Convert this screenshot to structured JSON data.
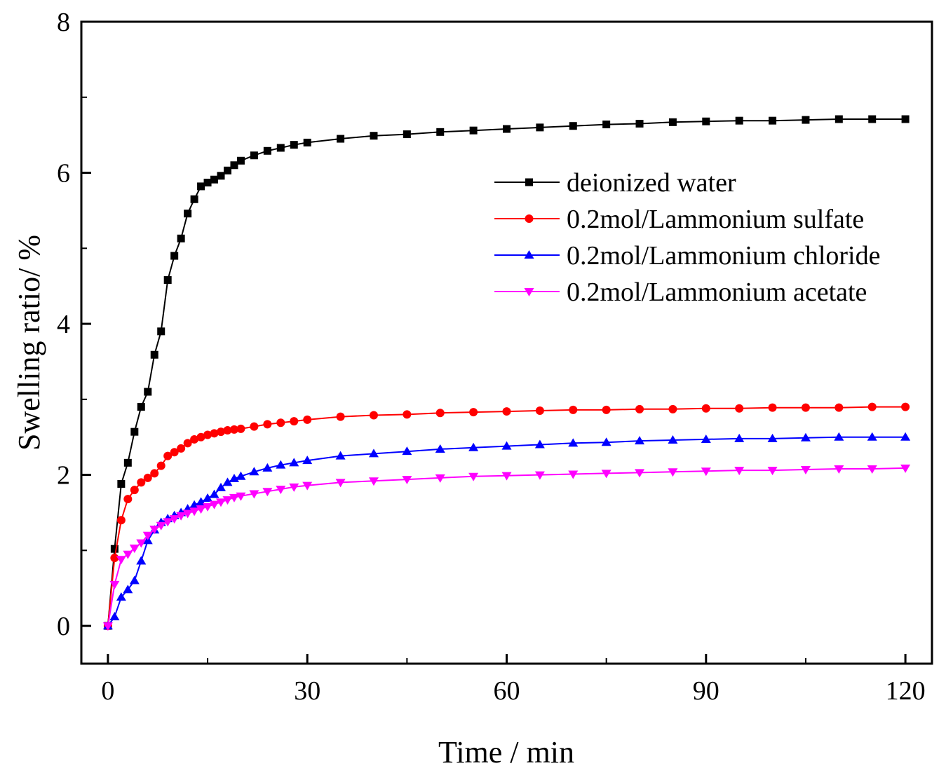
{
  "chart_data": {
    "type": "line",
    "title": "",
    "xlabel": "Time / min",
    "ylabel": "Swelling ratio/ %",
    "xlim": [
      -4,
      124
    ],
    "ylim": [
      -0.5,
      8
    ],
    "xticks": [
      0,
      30,
      60,
      90,
      120
    ],
    "yticks": [
      0,
      2,
      4,
      6,
      8
    ],
    "xtick_labels": [
      "0",
      "30",
      "60",
      "90",
      "120"
    ],
    "ytick_labels": [
      "0",
      "2",
      "4",
      "6",
      "8"
    ],
    "legend_position": "right",
    "series": [
      {
        "name": "deionized water",
        "color": "#000000",
        "marker": "square",
        "x": [
          0,
          1,
          2,
          3,
          4,
          5,
          6,
          7,
          8,
          9,
          10,
          11,
          12,
          13,
          14,
          15,
          16,
          17,
          18,
          19,
          20,
          22,
          24,
          26,
          28,
          30,
          35,
          40,
          45,
          50,
          55,
          60,
          65,
          70,
          75,
          80,
          85,
          90,
          95,
          100,
          105,
          110,
          115,
          120
        ],
        "y": [
          0,
          1.02,
          1.88,
          2.16,
          2.57,
          2.9,
          3.1,
          3.59,
          3.9,
          4.58,
          4.9,
          5.13,
          5.46,
          5.65,
          5.82,
          5.87,
          5.91,
          5.96,
          6.03,
          6.1,
          6.16,
          6.23,
          6.29,
          6.33,
          6.37,
          6.4,
          6.45,
          6.49,
          6.51,
          6.54,
          6.56,
          6.58,
          6.6,
          6.62,
          6.64,
          6.65,
          6.67,
          6.68,
          6.69,
          6.69,
          6.7,
          6.71,
          6.71,
          6.71
        ]
      },
      {
        "name": "0.2mol/Lammonium sulfate",
        "color": "#ff0000",
        "marker": "circle",
        "x": [
          0,
          1,
          2,
          3,
          4,
          5,
          6,
          7,
          8,
          9,
          10,
          11,
          12,
          13,
          14,
          15,
          16,
          17,
          18,
          19,
          20,
          22,
          24,
          26,
          28,
          30,
          35,
          40,
          45,
          50,
          55,
          60,
          65,
          70,
          75,
          80,
          85,
          90,
          95,
          100,
          105,
          110,
          115,
          120
        ],
        "y": [
          0,
          0.9,
          1.4,
          1.68,
          1.8,
          1.9,
          1.96,
          2.02,
          2.12,
          2.25,
          2.3,
          2.35,
          2.42,
          2.47,
          2.5,
          2.53,
          2.55,
          2.57,
          2.59,
          2.6,
          2.61,
          2.64,
          2.67,
          2.69,
          2.71,
          2.73,
          2.77,
          2.79,
          2.8,
          2.82,
          2.83,
          2.84,
          2.85,
          2.86,
          2.86,
          2.87,
          2.87,
          2.88,
          2.88,
          2.89,
          2.89,
          2.89,
          2.9,
          2.9
        ]
      },
      {
        "name": "0.2mol/Lammonium chloride",
        "color": "#0000ff",
        "marker": "triangle-up",
        "x": [
          0,
          1,
          2,
          3,
          4,
          5,
          6,
          7,
          8,
          9,
          10,
          11,
          12,
          13,
          14,
          15,
          16,
          17,
          18,
          19,
          20,
          22,
          24,
          26,
          28,
          30,
          35,
          40,
          45,
          50,
          55,
          60,
          65,
          70,
          75,
          80,
          85,
          90,
          95,
          100,
          105,
          110,
          115,
          120
        ],
        "y": [
          0,
          0.12,
          0.38,
          0.48,
          0.6,
          0.86,
          1.13,
          1.27,
          1.37,
          1.42,
          1.46,
          1.5,
          1.55,
          1.6,
          1.64,
          1.69,
          1.74,
          1.83,
          1.9,
          1.95,
          1.98,
          2.04,
          2.09,
          2.13,
          2.16,
          2.19,
          2.25,
          2.28,
          2.31,
          2.34,
          2.36,
          2.38,
          2.4,
          2.42,
          2.43,
          2.45,
          2.46,
          2.47,
          2.48,
          2.48,
          2.49,
          2.5,
          2.5,
          2.5
        ]
      },
      {
        "name": "0.2mol/Lammonium acetate",
        "color": "#ff00ff",
        "marker": "triangle-down",
        "x": [
          0,
          1,
          2,
          3,
          4,
          5,
          6,
          7,
          8,
          9,
          10,
          11,
          12,
          13,
          14,
          15,
          16,
          17,
          18,
          19,
          20,
          22,
          24,
          26,
          28,
          30,
          35,
          40,
          45,
          50,
          55,
          60,
          65,
          70,
          75,
          80,
          85,
          90,
          95,
          100,
          105,
          110,
          115,
          120
        ],
        "y": [
          0,
          0.55,
          0.88,
          0.95,
          1.03,
          1.1,
          1.2,
          1.28,
          1.33,
          1.38,
          1.42,
          1.46,
          1.49,
          1.52,
          1.55,
          1.58,
          1.61,
          1.64,
          1.67,
          1.7,
          1.72,
          1.75,
          1.78,
          1.81,
          1.84,
          1.86,
          1.9,
          1.92,
          1.94,
          1.96,
          1.98,
          1.99,
          2.0,
          2.01,
          2.02,
          2.03,
          2.04,
          2.05,
          2.06,
          2.06,
          2.07,
          2.08,
          2.08,
          2.09
        ]
      }
    ]
  }
}
